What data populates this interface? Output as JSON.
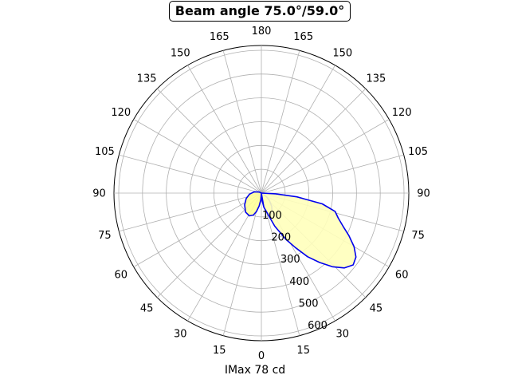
{
  "title": "Beam angle 75.0°/59.0°",
  "xlabel": "IMax 78 cd",
  "chart_data": {
    "type": "polar",
    "title": "Beam angle 75.0°/59.0°",
    "xlabel": "IMax 78 cd",
    "angle_ticks": [
      {
        "angle": 0,
        "label": "0"
      },
      {
        "angle": 15,
        "label": "15"
      },
      {
        "angle": 30,
        "label": "30"
      },
      {
        "angle": 45,
        "label": "45"
      },
      {
        "angle": 60,
        "label": "60"
      },
      {
        "angle": 75,
        "label": "75"
      },
      {
        "angle": 90,
        "label": "90"
      },
      {
        "angle": 105,
        "label": "105"
      },
      {
        "angle": 120,
        "label": "120"
      },
      {
        "angle": 135,
        "label": "135"
      },
      {
        "angle": 150,
        "label": "150"
      },
      {
        "angle": 165,
        "label": "165"
      },
      {
        "angle": 180,
        "label": "180"
      },
      {
        "angle": -165,
        "label": "165"
      },
      {
        "angle": -150,
        "label": "150"
      },
      {
        "angle": -135,
        "label": "135"
      },
      {
        "angle": -120,
        "label": "120"
      },
      {
        "angle": -105,
        "label": "105"
      },
      {
        "angle": -90,
        "label": "90"
      },
      {
        "angle": -75,
        "label": "75"
      },
      {
        "angle": -60,
        "label": "60"
      },
      {
        "angle": -45,
        "label": "45"
      },
      {
        "angle": -30,
        "label": "30"
      },
      {
        "angle": -15,
        "label": "15"
      }
    ],
    "radial_ticks": [
      100,
      200,
      300,
      400,
      500,
      600
    ],
    "rlim": [
      0,
      620
    ],
    "grid": true,
    "series": [
      {
        "color": "#0000ee",
        "fill": "#ffff99",
        "points": [
          [
            0,
            0
          ],
          [
            -5,
            28
          ],
          [
            -10,
            55
          ],
          [
            -15,
            80
          ],
          [
            -20,
            98
          ],
          [
            -28,
            108
          ],
          [
            -40,
            104
          ],
          [
            -55,
            86
          ],
          [
            -70,
            68
          ],
          [
            -85,
            50
          ],
          [
            -100,
            30
          ],
          [
            -115,
            10
          ],
          [
            -120,
            0
          ]
        ]
      },
      {
        "color": "#0000ee",
        "fill": "#ffff99",
        "points": [
          [
            0,
            0
          ],
          [
            5,
            30
          ],
          [
            10,
            58
          ],
          [
            15,
            80
          ],
          [
            20,
            94
          ],
          [
            25,
            96
          ],
          [
            30,
            90
          ],
          [
            38,
            70
          ],
          [
            48,
            45
          ],
          [
            55,
            25
          ],
          [
            60,
            0
          ]
        ]
      },
      {
        "color": "#0000ee",
        "fill": "#ffffbb",
        "points": [
          [
            0,
            0
          ],
          [
            10,
            60
          ],
          [
            22,
            150
          ],
          [
            28,
            220
          ],
          [
            32,
            270
          ],
          [
            36,
            330
          ],
          [
            40,
            380
          ],
          [
            44,
            430
          ],
          [
            48,
            470
          ],
          [
            52,
            490
          ],
          [
            56,
            480
          ],
          [
            60,
            450
          ],
          [
            64,
            410
          ],
          [
            68,
            370
          ],
          [
            72,
            340
          ],
          [
            76,
            320
          ],
          [
            80,
            260
          ],
          [
            84,
            150
          ],
          [
            87,
            60
          ],
          [
            90,
            0
          ]
        ]
      }
    ]
  }
}
